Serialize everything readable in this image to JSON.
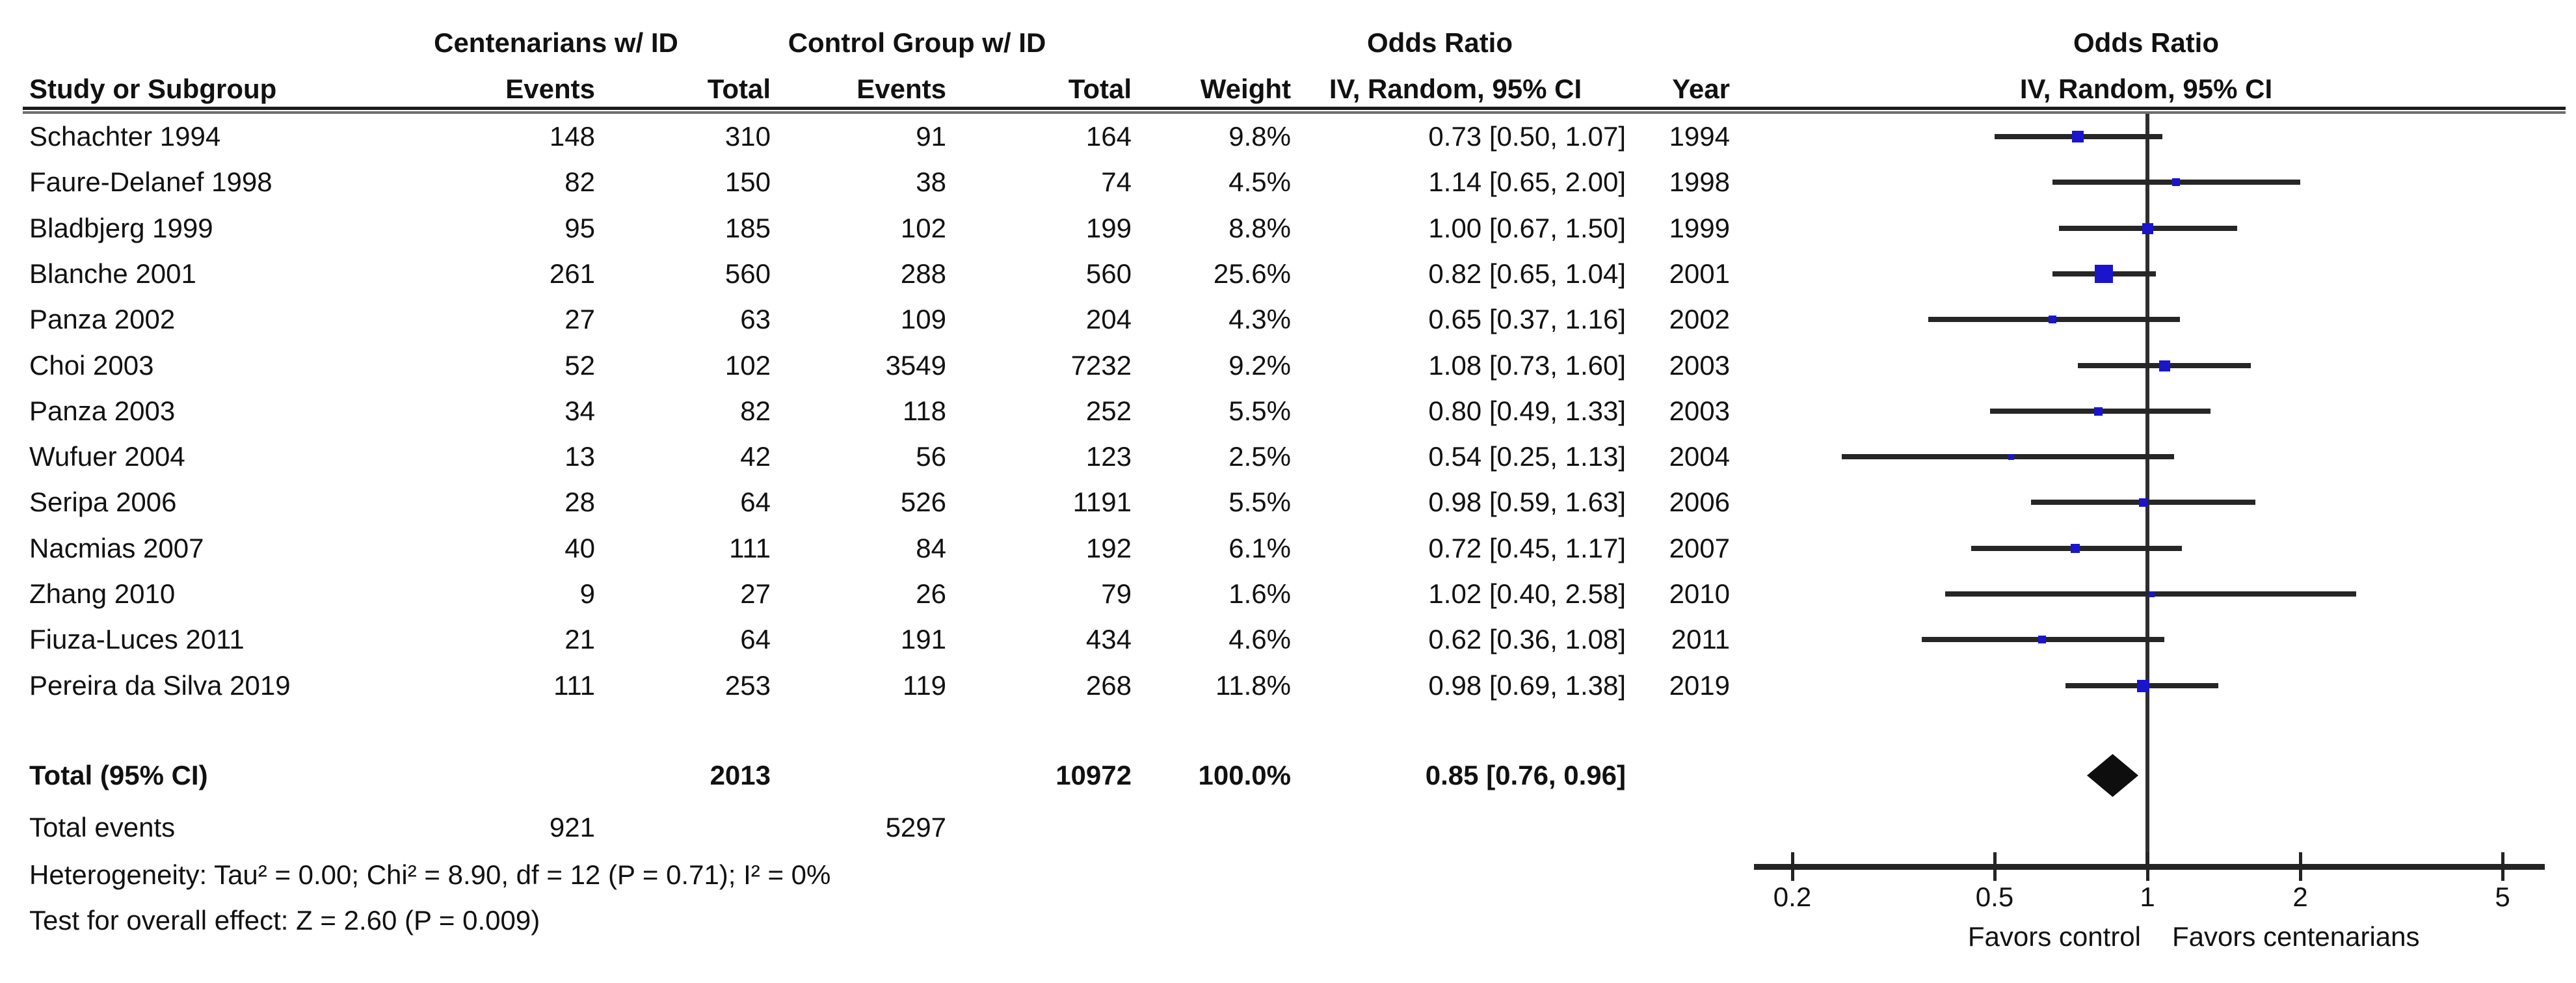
{
  "header": {
    "centenarians_group": "Centenarians w/ ID",
    "control_group": "Control Group w/ ID",
    "odds_ratio_left": "Odds Ratio",
    "odds_ratio_right": "Odds Ratio",
    "study_col": "Study or Subgroup",
    "events_col": "Events",
    "total_col": "Total",
    "events_col2": "Events",
    "total_col2": "Total",
    "weight_col": "Weight",
    "method_col": "IV, Random, 95% CI",
    "year_col": "Year",
    "method_col_right": "IV, Random, 95% CI"
  },
  "footer": {
    "heterogeneity": "Heterogeneity: Tau² = 0.00; Chi² = 8.90, df = 12 (P = 0.71); I² = 0%",
    "overall_effect": "Test for overall effect: Z = 2.60 (P = 0.009)",
    "favors_left": "Favors control",
    "favors_right": "Favors centenarians"
  },
  "chart_data": {
    "type": "forest",
    "effect_measure": "Odds Ratio",
    "model": "IV, Random, 95% CI",
    "x_scale": "log",
    "x_ticks": [
      0.2,
      0.5,
      1,
      2,
      5
    ],
    "x_axis_drawn_range": [
      0.17,
      6.0
    ],
    "studies": [
      {
        "study": "Schachter 1994",
        "events_cent": 148,
        "total_cent": 310,
        "events_ctrl": 91,
        "total_ctrl": 164,
        "weight_pct": 9.8,
        "weight_label": "9.8%",
        "or": 0.73,
        "ci_low": 0.5,
        "ci_high": 1.07,
        "or_ci_label": "0.73 [0.50, 1.07]",
        "year": "1994"
      },
      {
        "study": "Faure-Delanef 1998",
        "events_cent": 82,
        "total_cent": 150,
        "events_ctrl": 38,
        "total_ctrl": 74,
        "weight_pct": 4.5,
        "weight_label": "4.5%",
        "or": 1.14,
        "ci_low": 0.65,
        "ci_high": 2.0,
        "or_ci_label": "1.14 [0.65, 2.00]",
        "year": "1998"
      },
      {
        "study": "Bladbjerg 1999",
        "events_cent": 95,
        "total_cent": 185,
        "events_ctrl": 102,
        "total_ctrl": 199,
        "weight_pct": 8.8,
        "weight_label": "8.8%",
        "or": 1.0,
        "ci_low": 0.67,
        "ci_high": 1.5,
        "or_ci_label": "1.00 [0.67, 1.50]",
        "year": "1999"
      },
      {
        "study": "Blanche 2001",
        "events_cent": 261,
        "total_cent": 560,
        "events_ctrl": 288,
        "total_ctrl": 560,
        "weight_pct": 25.6,
        "weight_label": "25.6%",
        "or": 0.82,
        "ci_low": 0.65,
        "ci_high": 1.04,
        "or_ci_label": "0.82 [0.65, 1.04]",
        "year": "2001"
      },
      {
        "study": "Panza 2002",
        "events_cent": 27,
        "total_cent": 63,
        "events_ctrl": 109,
        "total_ctrl": 204,
        "weight_pct": 4.3,
        "weight_label": "4.3%",
        "or": 0.65,
        "ci_low": 0.37,
        "ci_high": 1.16,
        "or_ci_label": "0.65 [0.37, 1.16]",
        "year": "2002"
      },
      {
        "study": "Choi 2003",
        "events_cent": 52,
        "total_cent": 102,
        "events_ctrl": 3549,
        "total_ctrl": 7232,
        "weight_pct": 9.2,
        "weight_label": "9.2%",
        "or": 1.08,
        "ci_low": 0.73,
        "ci_high": 1.6,
        "or_ci_label": "1.08 [0.73, 1.60]",
        "year": "2003"
      },
      {
        "study": "Panza 2003",
        "events_cent": 34,
        "total_cent": 82,
        "events_ctrl": 118,
        "total_ctrl": 252,
        "weight_pct": 5.5,
        "weight_label": "5.5%",
        "or": 0.8,
        "ci_low": 0.49,
        "ci_high": 1.33,
        "or_ci_label": "0.80 [0.49, 1.33]",
        "year": "2003"
      },
      {
        "study": "Wufuer 2004",
        "events_cent": 13,
        "total_cent": 42,
        "events_ctrl": 56,
        "total_ctrl": 123,
        "weight_pct": 2.5,
        "weight_label": "2.5%",
        "or": 0.54,
        "ci_low": 0.25,
        "ci_high": 1.13,
        "or_ci_label": "0.54 [0.25, 1.13]",
        "year": "2004"
      },
      {
        "study": "Seripa 2006",
        "events_cent": 28,
        "total_cent": 64,
        "events_ctrl": 526,
        "total_ctrl": 1191,
        "weight_pct": 5.5,
        "weight_label": "5.5%",
        "or": 0.98,
        "ci_low": 0.59,
        "ci_high": 1.63,
        "or_ci_label": "0.98 [0.59, 1.63]",
        "year": "2006"
      },
      {
        "study": "Nacmias 2007",
        "events_cent": 40,
        "total_cent": 111,
        "events_ctrl": 84,
        "total_ctrl": 192,
        "weight_pct": 6.1,
        "weight_label": "6.1%",
        "or": 0.72,
        "ci_low": 0.45,
        "ci_high": 1.17,
        "or_ci_label": "0.72 [0.45, 1.17]",
        "year": "2007"
      },
      {
        "study": "Zhang 2010",
        "events_cent": 9,
        "total_cent": 27,
        "events_ctrl": 26,
        "total_ctrl": 79,
        "weight_pct": 1.6,
        "weight_label": "1.6%",
        "or": 1.02,
        "ci_low": 0.4,
        "ci_high": 2.58,
        "or_ci_label": "1.02 [0.40, 2.58]",
        "year": "2010"
      },
      {
        "study": "Fiuza-Luces 2011",
        "events_cent": 21,
        "total_cent": 64,
        "events_ctrl": 191,
        "total_ctrl": 434,
        "weight_pct": 4.6,
        "weight_label": "4.6%",
        "or": 0.62,
        "ci_low": 0.36,
        "ci_high": 1.08,
        "or_ci_label": "0.62 [0.36, 1.08]",
        "year": "2011"
      },
      {
        "study": "Pereira da Silva 2019",
        "events_cent": 111,
        "total_cent": 253,
        "events_ctrl": 119,
        "total_ctrl": 268,
        "weight_pct": 11.8,
        "weight_label": "11.8%",
        "or": 0.98,
        "ci_low": 0.69,
        "ci_high": 1.38,
        "or_ci_label": "0.98 [0.69, 1.38]",
        "year": "2019"
      }
    ],
    "overall": {
      "label": "Total (95% CI)",
      "total_cent": 2013,
      "total_ctrl": 10972,
      "weight_label": "100.0%",
      "or": 0.85,
      "ci_low": 0.76,
      "ci_high": 0.96,
      "or_ci_label": "0.85 [0.76, 0.96]"
    },
    "total_events": {
      "label": "Total events",
      "events_cent": 921,
      "events_ctrl": 5297
    }
  },
  "style": {
    "marker_color": "#1a15cc",
    "ci_color": "#262626",
    "diamond_color": "#0e0e0e",
    "text_color": "#111111"
  }
}
